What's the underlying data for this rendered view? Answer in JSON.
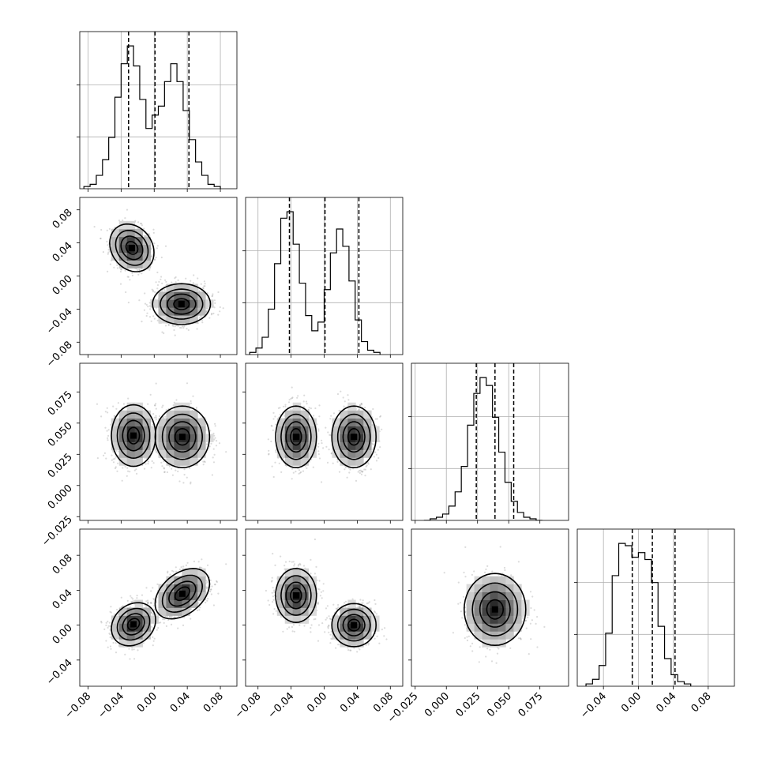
{
  "chart_data": {
    "type": "corner",
    "grid": true,
    "colors": {
      "line": "#000000",
      "density_dark": "#000000",
      "density_light": "#ffffff",
      "grid": "#b0b0b0",
      "scatter": "#999999"
    },
    "parameters": [
      {
        "range": [
          -0.09,
          0.1
        ],
        "quantiles": [
          -0.031,
          0.001,
          0.042
        ],
        "bin_edges_start": -0.085,
        "bin_width": 0.0075,
        "hist": [
          1,
          2,
          6,
          13,
          23,
          41,
          56,
          64,
          55,
          40,
          27,
          33,
          37,
          48,
          56,
          48,
          35,
          22,
          12,
          6,
          2,
          1
        ],
        "tick_values": [
          -0.08,
          -0.04,
          0.0,
          0.04,
          0.08
        ],
        "tick_labels": [
          "−0.08",
          "−0.04",
          "0.00",
          "0.04",
          "0.08"
        ],
        "modes": [
          {
            "center": -0.026,
            "sd": 0.013,
            "weight": 0.5
          },
          {
            "center": 0.034,
            "sd": 0.016,
            "weight": 0.5
          }
        ]
      },
      {
        "range": [
          -0.095,
          0.095
        ],
        "quantiles": [
          -0.042,
          0.001,
          0.042
        ],
        "bin_edges_start": -0.09,
        "bin_width": 0.0075,
        "hist": [
          1,
          3,
          8,
          21,
          42,
          63,
          66,
          51,
          33,
          18,
          11,
          15,
          30,
          47,
          58,
          50,
          34,
          16,
          6,
          2,
          1
        ],
        "tick_values": [
          -0.08,
          -0.04,
          0.0,
          0.04,
          0.08
        ],
        "tick_labels": [
          "−0.08",
          "−0.04",
          "0.00",
          "0.04",
          "0.08"
        ],
        "modes": [
          {
            "center": -0.034,
            "sd": 0.012,
            "weight": 0.5
          },
          {
            "center": 0.036,
            "sd": 0.013,
            "weight": 0.5
          }
        ]
      },
      {
        "range": [
          -0.028,
          0.098
        ],
        "quantiles": [
          0.024,
          0.039,
          0.054
        ],
        "bin_edges_start": -0.018,
        "bin_width": 0.005,
        "hist": [
          0,
          1,
          2,
          4,
          9,
          18,
          34,
          60,
          80,
          90,
          85,
          65,
          43,
          24,
          12,
          5,
          2,
          1,
          0
        ],
        "tick_values": [
          -0.025,
          0.0,
          0.025,
          0.05,
          0.075
        ],
        "tick_labels": [
          "−0.025",
          "0.000",
          "0.025",
          "0.050",
          "0.075"
        ],
        "modes": [
          {
            "center": 0.039,
            "sd": 0.012,
            "weight": 1.0
          }
        ]
      },
      {
        "range": [
          -0.07,
          0.11
        ],
        "quantiles": [
          -0.007,
          0.016,
          0.042
        ],
        "bin_edges_start": -0.06,
        "bin_width": 0.0075,
        "hist": [
          1,
          3,
          9,
          23,
          48,
          62,
          61,
          56,
          58,
          55,
          45,
          26,
          12,
          5,
          2,
          1
        ],
        "tick_values": [
          -0.04,
          0.0,
          0.04,
          0.08
        ],
        "tick_labels": [
          "−0.04",
          "0.00",
          "0.04",
          "0.08"
        ],
        "modes": [
          {
            "center": 0.0,
            "sd": 0.016,
            "weight": 0.5
          },
          {
            "center": 0.036,
            "sd": 0.016,
            "weight": 0.5
          }
        ]
      }
    ],
    "pairs": [
      {
        "row": 1,
        "col": 0,
        "clusters": [
          {
            "x": -0.027,
            "y": 0.034,
            "sx": 0.013,
            "sy": 0.014,
            "rho": -0.2
          },
          {
            "x": 0.033,
            "y": -0.034,
            "sx": 0.017,
            "sy": 0.012,
            "rho": 0.0
          }
        ]
      },
      {
        "row": 2,
        "col": 0,
        "clusters": [
          {
            "x": -0.025,
            "y": 0.04,
            "sx": 0.013,
            "sy": 0.012,
            "rho": 0.0
          },
          {
            "x": 0.034,
            "y": 0.039,
            "sx": 0.016,
            "sy": 0.012,
            "rho": 0.0
          }
        ]
      },
      {
        "row": 2,
        "col": 1,
        "clusters": [
          {
            "x": -0.034,
            "y": 0.039,
            "sx": 0.012,
            "sy": 0.012,
            "rho": 0.0
          },
          {
            "x": 0.036,
            "y": 0.039,
            "sx": 0.013,
            "sy": 0.012,
            "rho": 0.0
          }
        ]
      },
      {
        "row": 3,
        "col": 0,
        "clusters": [
          {
            "x": -0.025,
            "y": 0.001,
            "sx": 0.013,
            "sy": 0.012,
            "rho": 0.2
          },
          {
            "x": 0.034,
            "y": 0.036,
            "sx": 0.016,
            "sy": 0.014,
            "rho": 0.4
          }
        ]
      },
      {
        "row": 3,
        "col": 1,
        "clusters": [
          {
            "x": -0.034,
            "y": 0.034,
            "sx": 0.012,
            "sy": 0.015,
            "rho": 0.0
          },
          {
            "x": 0.036,
            "y": 0.0,
            "sx": 0.013,
            "sy": 0.012,
            "rho": 0.0
          }
        ]
      },
      {
        "row": 3,
        "col": 2,
        "clusters": [
          {
            "x": 0.039,
            "y": 0.018,
            "sx": 0.012,
            "sy": 0.02,
            "rho": 0.0
          }
        ]
      }
    ]
  }
}
